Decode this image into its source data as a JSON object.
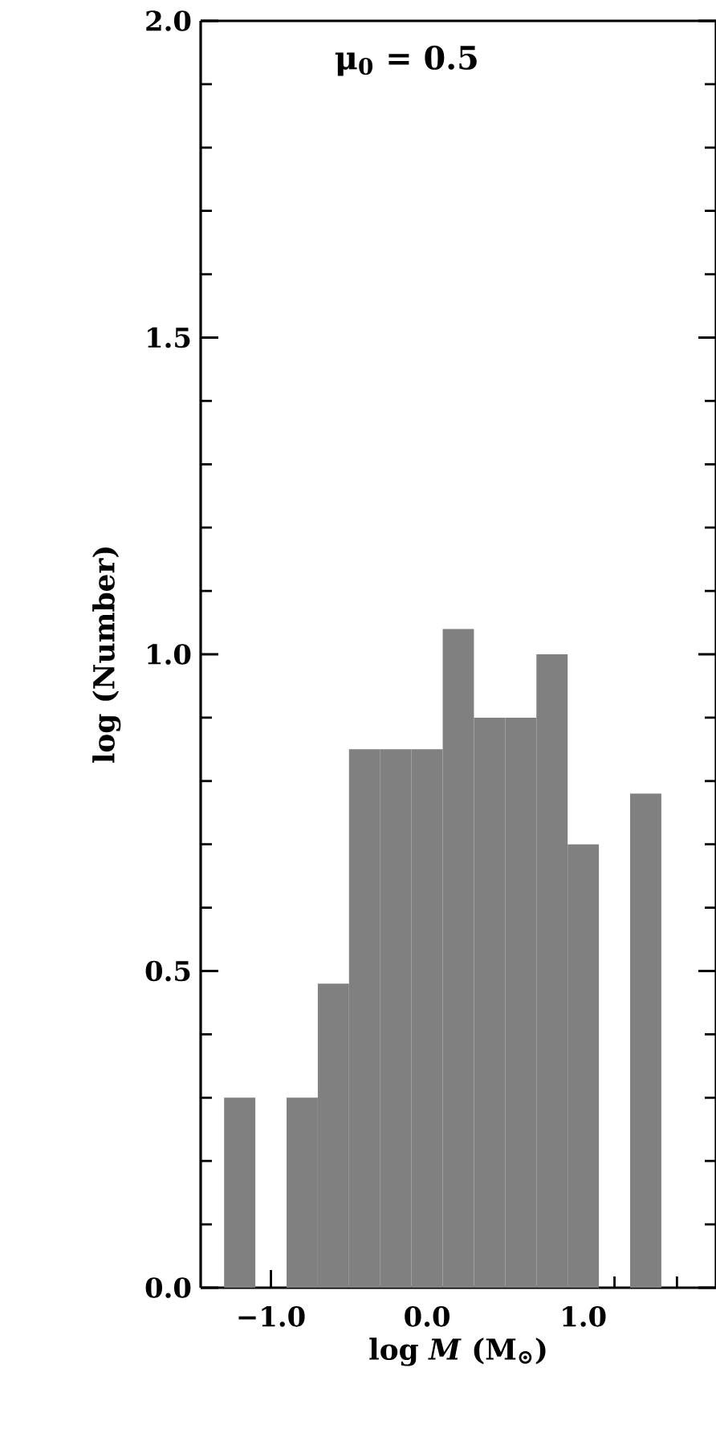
{
  "chart_data": {
    "type": "histogram",
    "xlabel": "log *M* (M$_{⊙}$)",
    "ylabel": "log (Number)",
    "annotations": [
      "μ$_{0}$ = 0.5"
    ],
    "bins": [
      -1.3,
      -1.1,
      -0.9,
      -0.7,
      -0.5,
      -0.3,
      -0.1,
      0.1,
      0.3,
      0.5,
      0.7,
      0.9,
      1.1,
      1.3,
      1.5
    ],
    "values": [
      0.3,
      0,
      0.3,
      0.48,
      0.85,
      0.85,
      0.85,
      1.04,
      0.9,
      0.9,
      1.0,
      0.7,
      0,
      0.78
    ],
    "color": "#808080",
    "xlim": [
      -1.45,
      1.85
    ],
    "ylim": [
      0,
      2.0
    ],
    "xticks": [
      {
        "value": -1.2,
        "label": null
      },
      {
        "value": -1.0,
        "label": "−1.0"
      },
      {
        "value": -0.8,
        "label": null
      },
      {
        "value": -0.6,
        "label": null
      },
      {
        "value": -0.4,
        "label": null
      },
      {
        "value": -0.2,
        "label": null
      },
      {
        "value": 0,
        "label": "0.0"
      },
      {
        "value": 0.2,
        "label": null
      },
      {
        "value": 0.4,
        "label": null
      },
      {
        "value": 0.6,
        "label": null
      },
      {
        "value": 0.8,
        "label": null
      },
      {
        "value": 1.0,
        "label": "1.0"
      },
      {
        "value": 1.2,
        "label": null
      },
      {
        "value": 1.4,
        "label": null
      },
      {
        "value": 1.6,
        "label": null
      }
    ],
    "yticks": [
      {
        "value": 0,
        "label": "0.0"
      },
      {
        "value": 0.1,
        "label": null
      },
      {
        "value": 0.2,
        "label": null
      },
      {
        "value": 0.3,
        "label": null
      },
      {
        "value": 0.4,
        "label": null
      },
      {
        "value": 0.5,
        "label": "0.5"
      },
      {
        "value": 0.6,
        "label": null
      },
      {
        "value": 0.7,
        "label": null
      },
      {
        "value": 0.8,
        "label": null
      },
      {
        "value": 0.9,
        "label": null
      },
      {
        "value": 1.0,
        "label": "1.0"
      },
      {
        "value": 1.1,
        "label": null
      },
      {
        "value": 1.2,
        "label": null
      },
      {
        "value": 1.3,
        "label": null
      },
      {
        "value": 1.4,
        "label": null
      },
      {
        "value": 1.5,
        "label": "1.5"
      },
      {
        "value": 1.6,
        "label": null
      },
      {
        "value": 1.7,
        "label": null
      },
      {
        "value": 1.8,
        "label": null
      },
      {
        "value": 1.9,
        "label": null
      },
      {
        "value": 2.0,
        "label": "2.0"
      }
    ],
    "grid": false
  }
}
